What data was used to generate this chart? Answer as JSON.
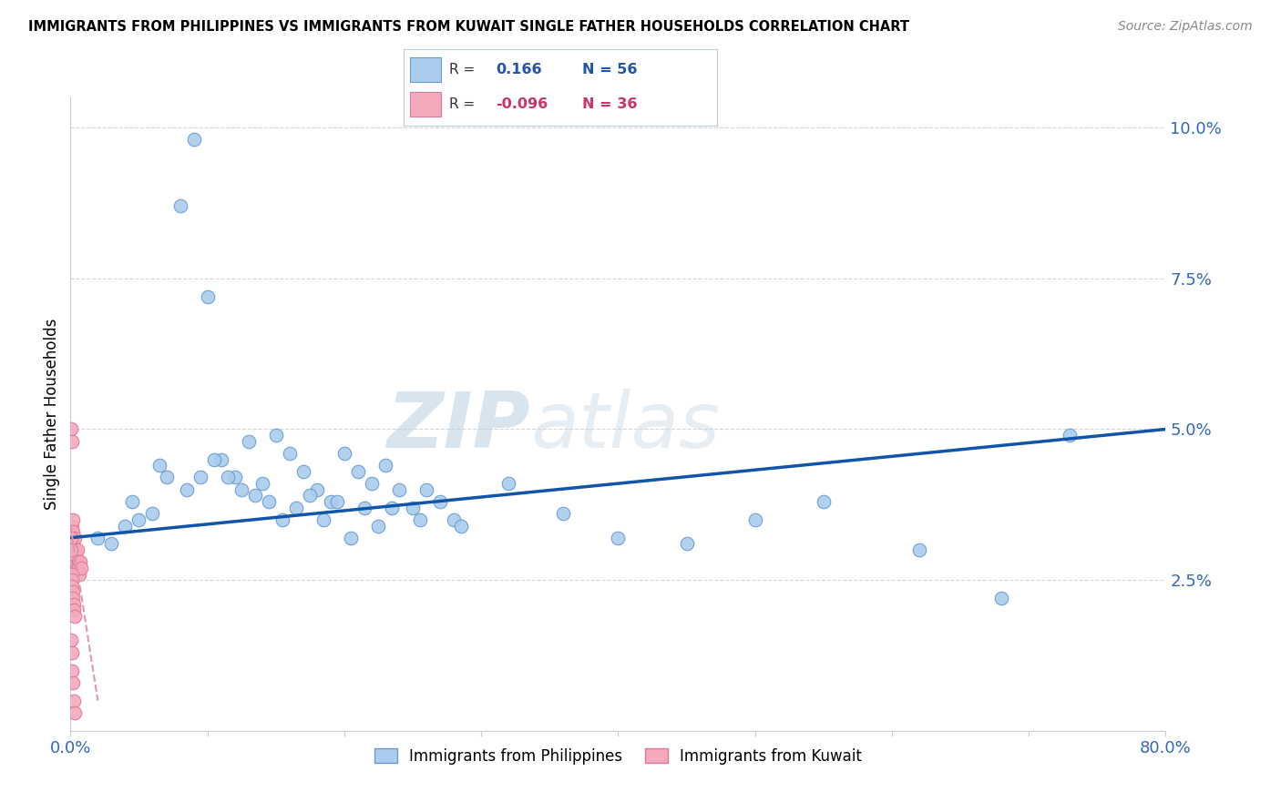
{
  "title": "IMMIGRANTS FROM PHILIPPINES VS IMMIGRANTS FROM KUWAIT SINGLE FATHER HOUSEHOLDS CORRELATION CHART",
  "source": "Source: ZipAtlas.com",
  "ylabel": "Single Father Households",
  "r_philippines": 0.166,
  "n_philippines": 56,
  "r_kuwait": -0.096,
  "n_kuwait": 36,
  "color_philippines": "#aaccee",
  "color_kuwait": "#f5aabc",
  "color_philippines_edge": "#6699cc",
  "color_kuwait_edge": "#dd7799",
  "trendline_blue": "#1155aa",
  "trendline_pink": "#dd99aa",
  "watermark_color": "#c5d8ec",
  "ylim": [
    0,
    10.5
  ],
  "xlim": [
    0,
    80
  ],
  "yticks": [
    0,
    2.5,
    5.0,
    7.5,
    10.0
  ],
  "ytick_labels": [
    "",
    "2.5%",
    "5.0%",
    "7.5%",
    "10.0%"
  ],
  "background_color": "#ffffff",
  "grid_color": "#cccccc",
  "phil_x": [
    2.0,
    4.0,
    6.0,
    8.0,
    9.0,
    10.0,
    11.0,
    12.0,
    13.0,
    14.0,
    15.0,
    16.0,
    17.0,
    18.0,
    19.0,
    20.0,
    21.0,
    22.0,
    23.0,
    24.0,
    25.0,
    26.0,
    27.0,
    28.0,
    5.0,
    7.0,
    9.5,
    10.5,
    11.5,
    12.5,
    14.5,
    15.5,
    17.5,
    19.5,
    21.5,
    23.5,
    3.0,
    4.5,
    6.5,
    8.5,
    13.5,
    16.5,
    18.5,
    20.5,
    22.5,
    25.5,
    28.5,
    32.0,
    36.0,
    40.0,
    45.0,
    50.0,
    55.0,
    62.0,
    68.0,
    73.0
  ],
  "phil_y": [
    3.2,
    3.4,
    3.6,
    8.7,
    9.8,
    7.2,
    4.5,
    4.2,
    4.8,
    4.1,
    4.9,
    4.6,
    4.3,
    4.0,
    3.8,
    4.6,
    4.3,
    4.1,
    4.4,
    4.0,
    3.7,
    4.0,
    3.8,
    3.5,
    3.5,
    4.2,
    4.2,
    4.5,
    4.2,
    4.0,
    3.8,
    3.5,
    3.9,
    3.8,
    3.7,
    3.7,
    3.1,
    3.8,
    4.4,
    4.0,
    3.9,
    3.7,
    3.5,
    3.2,
    3.4,
    3.5,
    3.4,
    4.1,
    3.6,
    3.2,
    3.1,
    3.5,
    3.8,
    3.0,
    2.2,
    4.9
  ],
  "kuw_x": [
    0.05,
    0.08,
    0.1,
    0.12,
    0.15,
    0.18,
    0.2,
    0.22,
    0.25,
    0.28,
    0.3,
    0.35,
    0.4,
    0.45,
    0.5,
    0.55,
    0.6,
    0.65,
    0.7,
    0.8,
    0.05,
    0.07,
    0.09,
    0.11,
    0.14,
    0.17,
    0.21,
    0.24,
    0.27,
    0.32,
    0.06,
    0.1,
    0.13,
    0.16,
    0.22,
    0.3
  ],
  "kuw_y": [
    5.0,
    4.8,
    3.4,
    3.2,
    3.5,
    3.3,
    3.1,
    3.0,
    2.9,
    2.8,
    3.2,
    3.0,
    2.9,
    2.7,
    3.0,
    2.8,
    2.7,
    2.6,
    2.8,
    2.7,
    3.2,
    3.0,
    2.6,
    2.5,
    2.4,
    2.3,
    2.2,
    2.1,
    2.0,
    1.9,
    1.5,
    1.3,
    1.0,
    0.8,
    0.5,
    0.3
  ]
}
